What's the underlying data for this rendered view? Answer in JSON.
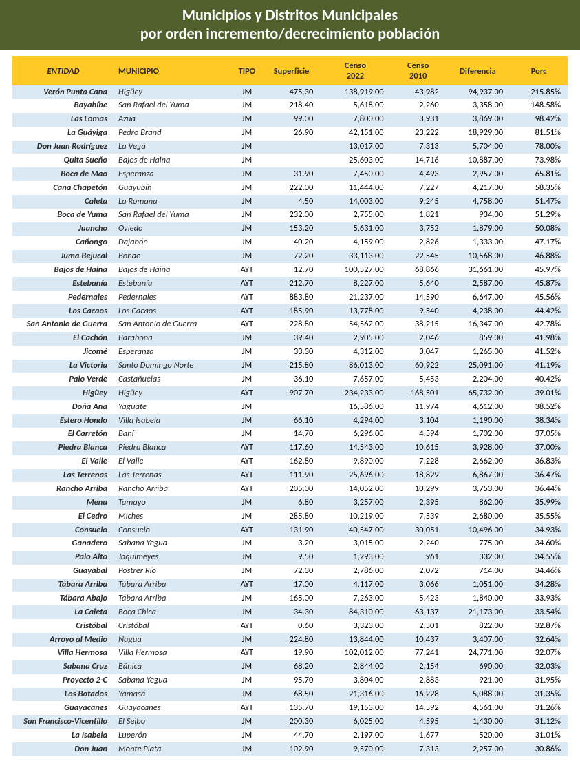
{
  "colors": {
    "title_bg": "#50612d",
    "header_bg": "#ffc926",
    "row_even": "#ffffff",
    "row_odd": "#dbe9f5",
    "text": "#2b2b2b"
  },
  "title": {
    "line1": "Municipios y Distritos Municipales",
    "line2": "por orden incremento/decrecimiento población"
  },
  "table": {
    "columns": [
      "ENTIDAD",
      "MUNICIPIO",
      "TIPO",
      "Superficie",
      "Censo 2022",
      "Censo 2010",
      "Diferencia",
      "Porc"
    ],
    "rows": [
      [
        "Verón Punta Cana",
        "Higüey",
        "JM",
        "475.30",
        "138,919.00",
        "43,982",
        "94,937.00",
        "215.85%"
      ],
      [
        "Bayahíbe",
        "San Rafael del Yuma",
        "JM",
        "218.40",
        "5,618.00",
        "2,260",
        "3,358.00",
        "148.58%"
      ],
      [
        "Las Lomas",
        "Azua",
        "JM",
        "99.00",
        "7,800.00",
        "3,931",
        "3,869.00",
        "98.42%"
      ],
      [
        "La Guáyiga",
        "Pedro Brand",
        "JM",
        "26.90",
        "42,151.00",
        "23,222",
        "18,929.00",
        "81.51%"
      ],
      [
        "Don Juan Rodríguez",
        "La Vega",
        "JM",
        "",
        "13,017.00",
        "7,313",
        "5,704.00",
        "78.00%"
      ],
      [
        "Quita Sueño",
        "Bajos de Haina",
        "JM",
        "",
        "25,603.00",
        "14,716",
        "10,887.00",
        "73.98%"
      ],
      [
        "Boca de Mao",
        "Esperanza",
        "JM",
        "31.90",
        "7,450.00",
        "4,493",
        "2,957.00",
        "65.81%"
      ],
      [
        "Cana Chapetón",
        "Guayubín",
        "JM",
        "222.00",
        "11,444.00",
        "7,227",
        "4,217.00",
        "58.35%"
      ],
      [
        "Caleta",
        "La Romana",
        "JM",
        "4.50",
        "14,003.00",
        "9,245",
        "4,758.00",
        "51.47%"
      ],
      [
        "Boca de Yuma",
        "San Rafael del Yuma",
        "JM",
        "232.00",
        "2,755.00",
        "1,821",
        "934.00",
        "51.29%"
      ],
      [
        "Juancho",
        "Oviedo",
        "JM",
        "153.20",
        "5,631.00",
        "3,752",
        "1,879.00",
        "50.08%"
      ],
      [
        "Cañongo",
        "Dajabón",
        "JM",
        "40.20",
        "4,159.00",
        "2,826",
        "1,333.00",
        "47.17%"
      ],
      [
        "Juma Bejucal",
        "Bonao",
        "JM",
        "72.20",
        "33,113.00",
        "22,545",
        "10,568.00",
        "46.88%"
      ],
      [
        "Bajos de Haina",
        "Bajos de Haina",
        "AYT",
        "12.70",
        "100,527.00",
        "68,866",
        "31,661.00",
        "45.97%"
      ],
      [
        "Estebanía",
        "Estebanía",
        "AYT",
        "212.70",
        "8,227.00",
        "5,640",
        "2,587.00",
        "45.87%"
      ],
      [
        "Pedernales",
        "Pedernales",
        "AYT",
        "883.80",
        "21,237.00",
        "14,590",
        "6,647.00",
        "45.56%"
      ],
      [
        "Los Cacaos",
        "Los Cacaos",
        "AYT",
        "185.90",
        "13,778.00",
        "9,540",
        "4,238.00",
        "44.42%"
      ],
      [
        "San Antonio de Guerra",
        "San Antonio de Guerra",
        "AYT",
        "228.80",
        "54,562.00",
        "38,215",
        "16,347.00",
        "42.78%"
      ],
      [
        "El Cachón",
        "Barahona",
        "JM",
        "39.40",
        "2,905.00",
        "2,046",
        "859.00",
        "41.98%"
      ],
      [
        "Jicomé",
        "Esperanza",
        "JM",
        "33.30",
        "4,312.00",
        "3,047",
        "1,265.00",
        "41.52%"
      ],
      [
        "La Victoria",
        "Santo Domingo Norte",
        "JM",
        "215.80",
        "86,013.00",
        "60,922",
        "25,091.00",
        "41.19%"
      ],
      [
        "Palo Verde",
        "Castañuelas",
        "JM",
        "36.10",
        "7,657.00",
        "5,453",
        "2,204.00",
        "40.42%"
      ],
      [
        "Higüey",
        "Higüey",
        "AYT",
        "907.70",
        "234,233.00",
        "168,501",
        "65,732.00",
        "39.01%"
      ],
      [
        "Doña Ana",
        "Yaguate",
        "JM",
        "",
        "16,586.00",
        "11,974",
        "4,612.00",
        "38.52%"
      ],
      [
        "Estero Hondo",
        "Villa Isabela",
        "JM",
        "66.10",
        "4,294.00",
        "3,104",
        "1,190.00",
        "38.34%"
      ],
      [
        "El Carretón",
        "Baní",
        "JM",
        "14.70",
        "6,296.00",
        "4,594",
        "1,702.00",
        "37.05%"
      ],
      [
        "Piedra Blanca",
        "Piedra Blanca",
        "AYT",
        "117.60",
        "14,543.00",
        "10,615",
        "3,928.00",
        "37.00%"
      ],
      [
        "El Valle",
        "El Valle",
        "AYT",
        "162.80",
        "9,890.00",
        "7,228",
        "2,662.00",
        "36.83%"
      ],
      [
        "Las Terrenas",
        "Las Terrenas",
        "AYT",
        "111.90",
        "25,696.00",
        "18,829",
        "6,867.00",
        "36.47%"
      ],
      [
        "Rancho Arriba",
        "Rancho Arriba",
        "AYT",
        "205.00",
        "14,052.00",
        "10,299",
        "3,753.00",
        "36.44%"
      ],
      [
        "Mena",
        "Tamayo",
        "JM",
        "6.80",
        "3,257.00",
        "2,395",
        "862.00",
        "35.99%"
      ],
      [
        "El Cedro",
        "Miches",
        "JM",
        "285.80",
        "10,219.00",
        "7,539",
        "2,680.00",
        "35.55%"
      ],
      [
        "Consuelo",
        "Consuelo",
        "AYT",
        "131.90",
        "40,547.00",
        "30,051",
        "10,496.00",
        "34.93%"
      ],
      [
        "Ganadero",
        "Sabana Yegua",
        "JM",
        "3.20",
        "3,015.00",
        "2,240",
        "775.00",
        "34.60%"
      ],
      [
        "Palo Alto",
        "Jaquimeyes",
        "JM",
        "9.50",
        "1,293.00",
        "961",
        "332.00",
        "34.55%"
      ],
      [
        "Guayabal",
        "Postrer Río",
        "JM",
        "72.30",
        "2,786.00",
        "2,072",
        "714.00",
        "34.46%"
      ],
      [
        "Tábara Arriba",
        "Tábara Arriba",
        "AYT",
        "17.00",
        "4,117.00",
        "3,066",
        "1,051.00",
        "34.28%"
      ],
      [
        "Tábara Abajo",
        "Tábara Arriba",
        "JM",
        "165.00",
        "7,263.00",
        "5,423",
        "1,840.00",
        "33.93%"
      ],
      [
        "La Caleta",
        "Boca Chica",
        "JM",
        "34.30",
        "84,310.00",
        "63,137",
        "21,173.00",
        "33.54%"
      ],
      [
        "Cristóbal",
        "Cristóbal",
        "AYT",
        "0.60",
        "3,323.00",
        "2,501",
        "822.00",
        "32.87%"
      ],
      [
        "Arroyo al Medio",
        "Nagua",
        "JM",
        "224.80",
        "13,844.00",
        "10,437",
        "3,407.00",
        "32.64%"
      ],
      [
        "Villa Hermosa",
        "Villa Hermosa",
        "AYT",
        "19.90",
        "102,012.00",
        "77,241",
        "24,771.00",
        "32.07%"
      ],
      [
        "Sabana Cruz",
        "Bánica",
        "JM",
        "68.20",
        "2,844.00",
        "2,154",
        "690.00",
        "32.03%"
      ],
      [
        "Proyecto 2-C",
        "Sabana Yegua",
        "JM",
        "95.70",
        "3,804.00",
        "2,883",
        "921.00",
        "31.95%"
      ],
      [
        "Los Botados",
        "Yamasá",
        "JM",
        "68.50",
        "21,316.00",
        "16,228",
        "5,088.00",
        "31.35%"
      ],
      [
        "Guayacanes",
        "Guayacanes",
        "AYT",
        "135.70",
        "19,153.00",
        "14,592",
        "4,561.00",
        "31.26%"
      ],
      [
        "San Francisco-Vicentillo",
        "El Seibo",
        "JM",
        "200.30",
        "6,025.00",
        "4,595",
        "1,430.00",
        "31.12%"
      ],
      [
        "La Isabela",
        "Luperón",
        "JM",
        "44.70",
        "2,197.00",
        "1,677",
        "520.00",
        "31.01%"
      ],
      [
        "Don Juan",
        "Monte Plata",
        "JM",
        "102.90",
        "9,570.00",
        "7,313",
        "2,257.00",
        "30.86%"
      ]
    ]
  }
}
